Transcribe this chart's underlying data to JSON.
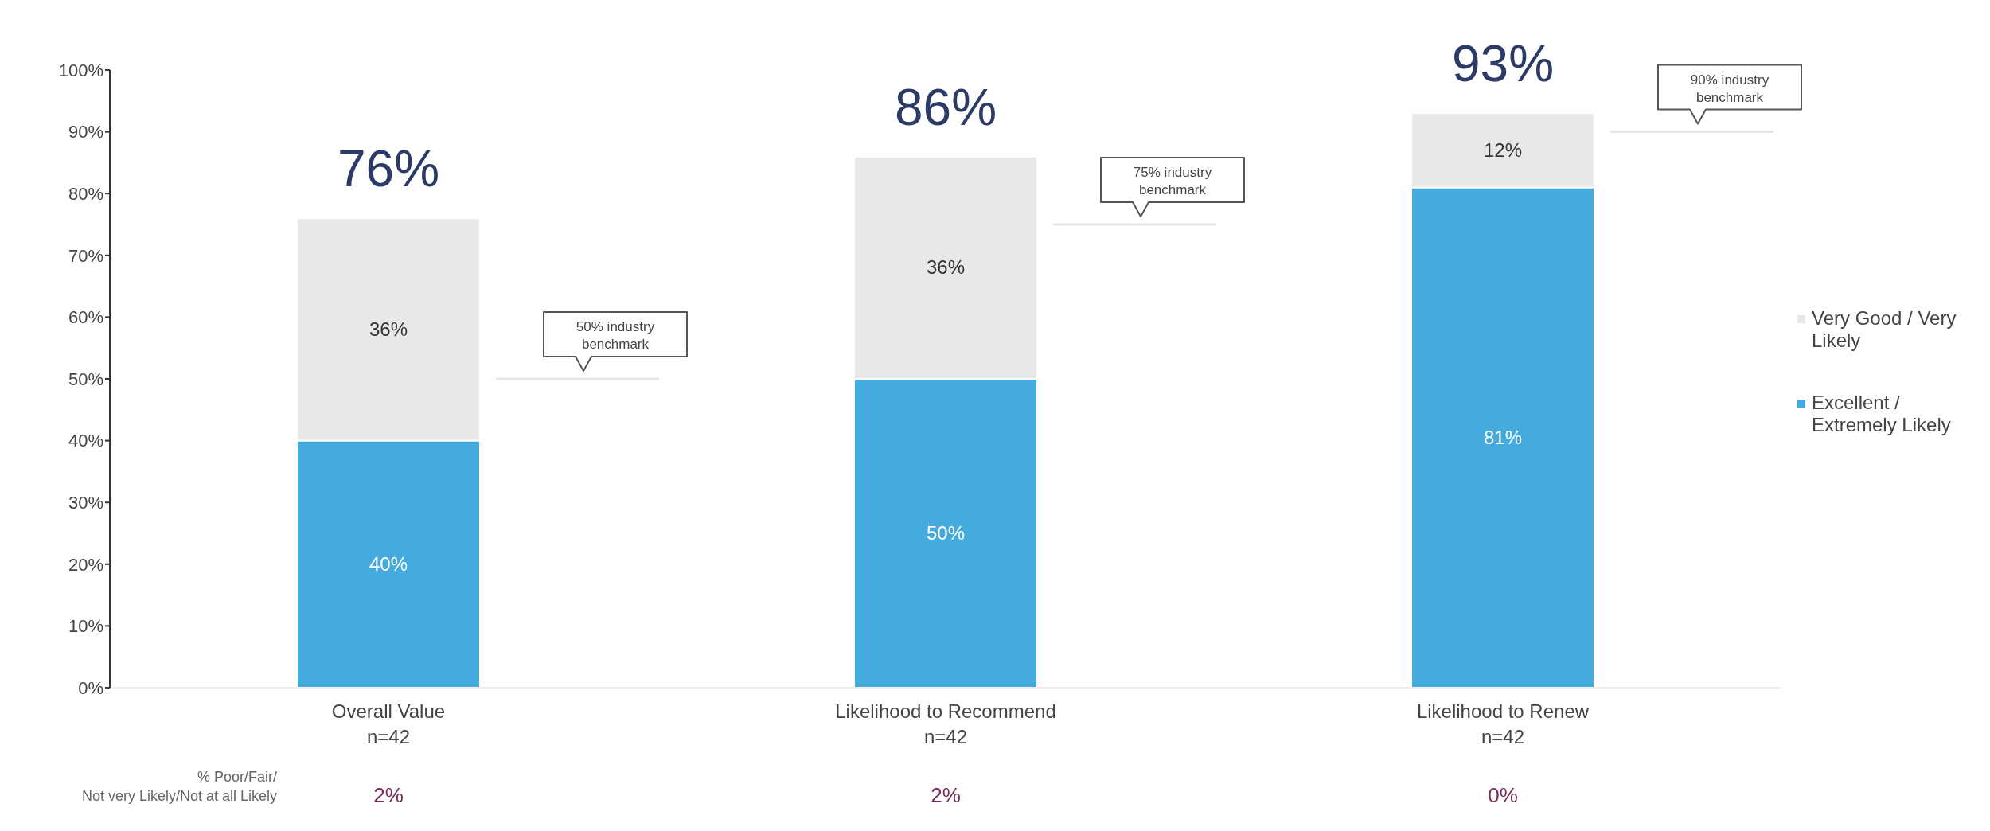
{
  "chart_data": {
    "type": "bar",
    "stacked": true,
    "categories": [
      "Overall Value\nn=42",
      "Likelihood to Recommend\nn=42",
      "Likelihood to Renew\nn=42"
    ],
    "series": [
      {
        "name": "Excellent / Extremely Likely",
        "color": "#45aade",
        "values": [
          40,
          50,
          81
        ],
        "value_labels": [
          "40%",
          "50%",
          "81%"
        ]
      },
      {
        "name": "Very Good / Very Likely",
        "color": "#e8e8e8",
        "values": [
          36,
          36,
          12
        ],
        "value_labels": [
          "36%",
          "36%",
          "12%"
        ]
      }
    ],
    "ylim": [
      0,
      100
    ],
    "yticks": [
      {
        "value": 0,
        "label": "0%"
      },
      {
        "value": 10,
        "label": "10%"
      },
      {
        "value": 20,
        "label": "20%"
      },
      {
        "value": 30,
        "label": "30%"
      },
      {
        "value": 40,
        "label": "40%"
      },
      {
        "value": 50,
        "label": "50%"
      },
      {
        "value": 60,
        "label": "60%"
      },
      {
        "value": 70,
        "label": "70%"
      },
      {
        "value": 80,
        "label": "80%"
      },
      {
        "value": 90,
        "label": "90%"
      },
      {
        "value": 100,
        "label": "100%"
      }
    ],
    "totals": [
      "76%",
      "86%",
      "93%"
    ],
    "legend": "right",
    "ref_lines": [
      {
        "axis": "y",
        "value": 50,
        "label": "50% industry benchmark",
        "color": "#e6e6e6"
      },
      {
        "axis": "y",
        "value": 75,
        "label": "75% industry benchmark",
        "color": "#e6e6e6"
      },
      {
        "axis": "y",
        "value": 90,
        "label": "90% industry benchmark",
        "color": "#e6e6e6"
      }
    ],
    "annotations": [
      "% Poor/Fair/ Not very Likely/Not at all Likely",
      "2%",
      "2%",
      "0%"
    ]
  }
}
